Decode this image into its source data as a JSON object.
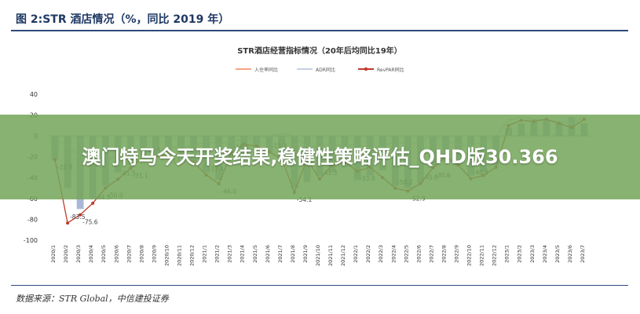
{
  "figure_title": "图 2:STR 酒店情况（%，同比 2019 年）",
  "banner_text": "澳门特马今天开奖结果,稳健性策略评估_QHD版30.366",
  "source_text": "数据来源：STR Global，中信建投证券",
  "colors": {
    "bar": "#a9b7d5",
    "occupancy": "#f4a582",
    "adr": "#c6cfe2",
    "revpar": "#c0392b",
    "banner": "#74a55a",
    "title": "#1f3864"
  },
  "chart_data": {
    "type": "bar",
    "title": "STR酒店经营指标情况（20年后均同比19年）",
    "xlabel": "",
    "ylabel": "",
    "ylim": [
      -100,
      40
    ],
    "yticks": [
      40,
      20,
      0,
      -20,
      -40,
      -60,
      -80,
      -100
    ],
    "grid": false,
    "legend_position": "top",
    "categories": [
      "2020/1",
      "2020/2",
      "2020/3",
      "2020/4",
      "2020/5",
      "2020/6",
      "2020/7",
      "2020/8",
      "2020/9",
      "2020/10",
      "2020/11",
      "2020/12",
      "2021/1",
      "2021/2",
      "2021/3",
      "2021/4",
      "2021/5",
      "2021/6",
      "2021/7",
      "2021/8",
      "2021/9",
      "2021/10",
      "2021/11",
      "2021/12",
      "2022/1",
      "2022/2",
      "2022/3",
      "2022/4",
      "2022/5",
      "2022/6",
      "2022/7",
      "2022/8",
      "2022/9",
      "2022/10",
      "2022/11",
      "2022/12",
      "2023/1",
      "2023/2",
      "2023/3",
      "2023/4",
      "2023/5",
      "2023/6",
      "2023/7"
    ],
    "series": [
      {
        "name": "入住率同比",
        "type": "bar",
        "values": [
          -23,
          -50,
          -70,
          -60,
          -48,
          -35,
          -28,
          -20,
          -18,
          -16,
          -20,
          -28,
          -35,
          -42,
          -22,
          -18,
          -14,
          -16,
          -25,
          -50,
          -44,
          -38,
          -35,
          -30,
          -42,
          -38,
          -33,
          -48,
          -50,
          -45,
          -30,
          -25,
          -28,
          -38,
          -35,
          -28,
          8,
          12,
          14,
          15,
          13,
          18,
          12
        ]
      },
      {
        "name": "ADR同比",
        "type": "line",
        "values": [
          -2,
          -10,
          -20,
          -28,
          -25,
          -18,
          -15,
          -14,
          -15,
          -12,
          -10,
          -10,
          -5,
          -8,
          -5,
          -3,
          -2,
          0,
          2,
          0,
          -10,
          -10,
          -8,
          -10,
          -8,
          -12,
          -10,
          -5,
          -8,
          -5,
          0,
          -5,
          -8,
          -10,
          -5,
          0,
          15,
          18,
          16,
          15,
          14,
          12,
          18
        ]
      },
      {
        "name": "RevPAR同比",
        "type": "line",
        "values": [
          -22.8,
          -83.5,
          -75.6,
          -64.5,
          -50.0,
          -41.5,
          -31.1,
          -19.5,
          -20.0,
          -17.7,
          -18.0,
          -25.0,
          -37.4,
          -46.0,
          -16.6,
          -7.9,
          -10.0,
          -15.3,
          -22.0,
          -54.1,
          -22.0,
          -41.3,
          -28.0,
          -25.0,
          -33.9,
          -30.0,
          -40.0,
          -50.2,
          -52.9,
          -45.6,
          -30.6,
          -20.0,
          -28.0,
          -40.9,
          -38.0,
          -30.0,
          10.0,
          15.0,
          14.0,
          16.0,
          12.0,
          8.0,
          16.0
        ]
      }
    ],
    "data_labels": [
      {
        "series": 2,
        "index": 0,
        "text": "-22.8"
      },
      {
        "series": 2,
        "index": 1,
        "text": "-83.5"
      },
      {
        "series": 2,
        "index": 2,
        "text": "-75.6"
      },
      {
        "series": 2,
        "index": 3,
        "text": "-64.5"
      },
      {
        "series": 2,
        "index": 4,
        "text": "-50.0"
      },
      {
        "series": 2,
        "index": 5,
        "text": "-41.5"
      },
      {
        "series": 2,
        "index": 6,
        "text": "-31.1"
      },
      {
        "series": 2,
        "index": 7,
        "text": "-19.5"
      },
      {
        "series": 2,
        "index": 9,
        "text": "-17.7"
      },
      {
        "series": 2,
        "index": 12,
        "text": "-37.4"
      },
      {
        "series": 2,
        "index": 13,
        "text": "-46.0"
      },
      {
        "series": 2,
        "index": 14,
        "text": "-16.6"
      },
      {
        "series": 2,
        "index": 15,
        "text": "-7.9"
      },
      {
        "series": 2,
        "index": 17,
        "text": "-15.3"
      },
      {
        "series": 2,
        "index": 19,
        "text": "-54.1"
      },
      {
        "series": 2,
        "index": 21,
        "text": "-41.3"
      },
      {
        "series": 2,
        "index": 24,
        "text": "-33.9"
      },
      {
        "series": 2,
        "index": 27,
        "text": "-50.2"
      },
      {
        "series": 2,
        "index": 28,
        "text": "-52.9"
      },
      {
        "series": 2,
        "index": 29,
        "text": "-45.6"
      },
      {
        "series": 2,
        "index": 30,
        "text": "-30.6"
      },
      {
        "series": 2,
        "index": 33,
        "text": "-40.9"
      }
    ]
  }
}
